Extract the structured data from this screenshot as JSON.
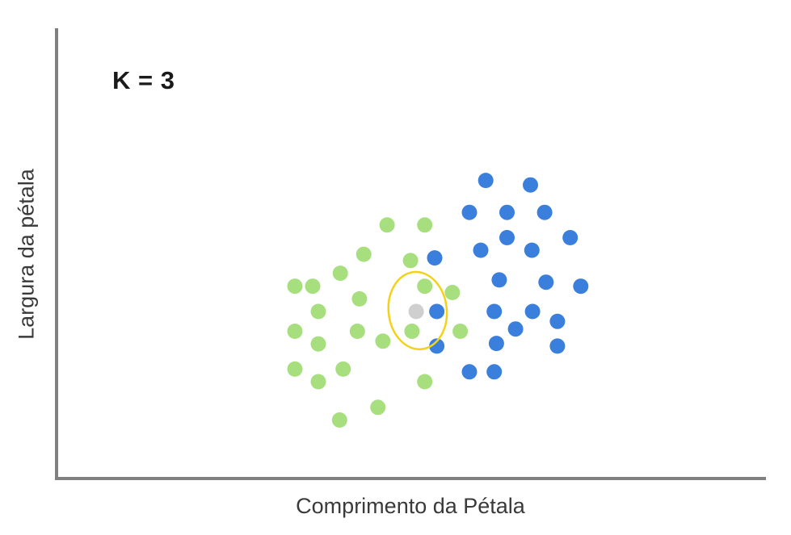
{
  "annotation": {
    "k_text": "K = 3"
  },
  "colors": {
    "class_green": "#a8df7e",
    "class_blue": "#3a7fdc",
    "query_point": "#cfcfcf",
    "highlight_ring": "#f3d21a",
    "axis": "#808080"
  },
  "chart_data": {
    "type": "scatter",
    "title": "",
    "xlabel": "Comprimento da Pétala",
    "ylabel": "Largura da pétala",
    "xlim": [
      0,
      10
    ],
    "ylim": [
      0,
      10
    ],
    "grid": false,
    "legend": "none",
    "series": [
      {
        "color": "#a8df7e",
        "points": [
          [
            4.66,
            5.63
          ],
          [
            5.19,
            5.63
          ],
          [
            4.33,
            4.98
          ],
          [
            4.0,
            4.56
          ],
          [
            3.61,
            4.27
          ],
          [
            4.99,
            4.84
          ],
          [
            3.36,
            4.27
          ],
          [
            4.27,
            3.99
          ],
          [
            3.69,
            3.71
          ],
          [
            5.58,
            4.13
          ],
          [
            3.36,
            3.27
          ],
          [
            3.69,
            2.99
          ],
          [
            4.24,
            3.27
          ],
          [
            4.6,
            3.05
          ],
          [
            5.01,
            3.27
          ],
          [
            5.69,
            3.27
          ],
          [
            3.36,
            2.43
          ],
          [
            3.69,
            2.15
          ],
          [
            4.04,
            2.43
          ],
          [
            5.19,
            2.15
          ],
          [
            4.53,
            1.58
          ],
          [
            3.99,
            1.3
          ],
          [
            5.19,
            4.27
          ]
        ]
      },
      {
        "color": "#3a7fdc",
        "points": [
          [
            6.05,
            6.62
          ],
          [
            6.68,
            6.52
          ],
          [
            5.82,
            5.91
          ],
          [
            6.35,
            5.91
          ],
          [
            6.88,
            5.91
          ],
          [
            6.35,
            5.35
          ],
          [
            7.24,
            5.35
          ],
          [
            5.98,
            5.07
          ],
          [
            6.7,
            5.07
          ],
          [
            5.33,
            4.9
          ],
          [
            6.24,
            4.41
          ],
          [
            6.9,
            4.36
          ],
          [
            7.39,
            4.27
          ],
          [
            5.36,
            3.71
          ],
          [
            6.17,
            3.71
          ],
          [
            6.71,
            3.71
          ],
          [
            7.06,
            3.49
          ],
          [
            6.47,
            3.32
          ],
          [
            6.2,
            3.0
          ],
          [
            5.36,
            2.94
          ],
          [
            7.06,
            2.94
          ],
          [
            5.82,
            2.37
          ],
          [
            6.17,
            2.37
          ]
        ]
      },
      {
        "color": "#cfcfcf",
        "points": [
          [
            5.07,
            3.71
          ]
        ]
      }
    ],
    "annotations": [
      {
        "type": "circle",
        "center": [
          5.09,
          3.73
        ],
        "radius_x": 0.41,
        "radius_y": 0.86,
        "color": "#f3d21a"
      }
    ]
  }
}
